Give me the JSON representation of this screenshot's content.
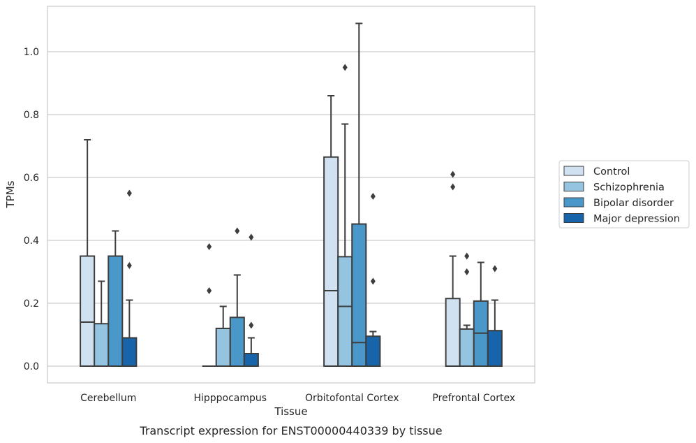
{
  "chart_data": {
    "type": "boxplot",
    "title": "",
    "caption": "Transcript expression for ENST00000440339 by tissue",
    "xlabel": "Tissue",
    "ylabel": "TPMs",
    "ylim": [
      -0.05,
      1.15
    ],
    "yticks": [
      0.0,
      0.2,
      0.4,
      0.6,
      0.8,
      1.0
    ],
    "ytick_labels": [
      "0.0",
      "0.2",
      "0.4",
      "0.6",
      "0.8",
      "1.0"
    ],
    "grid": "horizontal",
    "legend_position": "right",
    "categories": [
      "Cerebellum",
      "Hipppocampus",
      "Orbitofontal Cortex",
      "Prefrontal Cortex"
    ],
    "series": [
      {
        "name": "Control",
        "color": "#d0e1f2",
        "boxes": [
          {
            "min": 0.0,
            "q1": 0.0,
            "median": 0.14,
            "q3": 0.35,
            "max": 0.72,
            "outliers": []
          },
          {
            "min": 0.0,
            "q1": 0.0,
            "median": 0.0,
            "q3": 0.0,
            "max": 0.0,
            "outliers": [
              0.24,
              0.38
            ]
          },
          {
            "min": 0.0,
            "q1": 0.0,
            "median": 0.24,
            "q3": 0.665,
            "max": 0.86,
            "outliers": []
          },
          {
            "min": 0.0,
            "q1": 0.0,
            "median": 0.0,
            "q3": 0.215,
            "max": 0.35,
            "outliers": [
              0.57,
              0.61
            ]
          }
        ]
      },
      {
        "name": "Schizophrenia",
        "color": "#94c4df",
        "boxes": [
          {
            "min": 0.0,
            "q1": 0.0,
            "median": 0.0,
            "q3": 0.135,
            "max": 0.27,
            "outliers": []
          },
          {
            "min": 0.0,
            "q1": 0.0,
            "median": 0.0,
            "q3": 0.12,
            "max": 0.19,
            "outliers": []
          },
          {
            "min": 0.0,
            "q1": 0.0,
            "median": 0.19,
            "q3": 0.348,
            "max": 0.77,
            "outliers": [
              0.95
            ]
          },
          {
            "min": 0.0,
            "q1": 0.0,
            "median": 0.0,
            "q3": 0.118,
            "max": 0.13,
            "outliers": [
              0.3,
              0.35
            ]
          }
        ]
      },
      {
        "name": "Bipolar disorder",
        "color": "#4a98c9",
        "boxes": [
          {
            "min": 0.0,
            "q1": 0.0,
            "median": 0.0,
            "q3": 0.35,
            "max": 0.43,
            "outliers": []
          },
          {
            "min": 0.0,
            "q1": 0.0,
            "median": 0.0,
            "q3": 0.155,
            "max": 0.29,
            "outliers": [
              0.43
            ]
          },
          {
            "min": 0.0,
            "q1": 0.0,
            "median": 0.075,
            "q3": 0.452,
            "max": 1.09,
            "outliers": []
          },
          {
            "min": 0.0,
            "q1": 0.0,
            "median": 0.105,
            "q3": 0.207,
            "max": 0.33,
            "outliers": []
          }
        ]
      },
      {
        "name": "Major depression",
        "color": "#1764ab",
        "boxes": [
          {
            "min": 0.0,
            "q1": 0.0,
            "median": 0.0,
            "q3": 0.09,
            "max": 0.21,
            "outliers": [
              0.32,
              0.55
            ]
          },
          {
            "min": 0.0,
            "q1": 0.0,
            "median": 0.0,
            "q3": 0.04,
            "max": 0.09,
            "outliers": [
              0.13,
              0.41
            ]
          },
          {
            "min": 0.0,
            "q1": 0.0,
            "median": 0.0,
            "q3": 0.095,
            "max": 0.11,
            "outliers": [
              0.27,
              0.54
            ]
          },
          {
            "min": 0.0,
            "q1": 0.0,
            "median": 0.0,
            "q3": 0.113,
            "max": 0.21,
            "outliers": [
              0.31
            ]
          }
        ]
      }
    ]
  }
}
